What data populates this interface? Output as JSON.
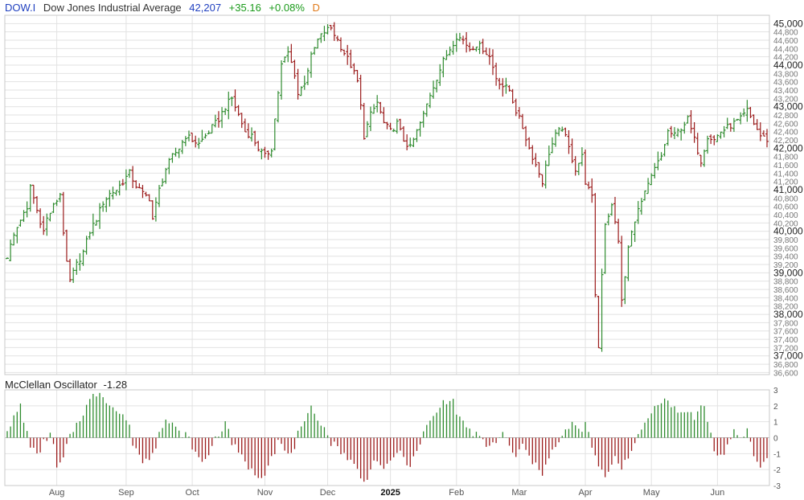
{
  "header": {
    "symbol": "DOW.I",
    "name": "Dow Jones Industrial Average",
    "last": "42,207",
    "change": "+35.16",
    "percent": "+0.08%",
    "frequency": "D"
  },
  "oscillator": {
    "name": "McClellan Oscillator",
    "value": "-1.28"
  },
  "colors": {
    "up": "#2e8b2e",
    "down": "#9b1b1b",
    "grid": "#e2e2e2",
    "frame": "#c8c8c8",
    "axis_text": "#555555"
  },
  "chart_data": [
    {
      "type": "ohlc",
      "title": "Dow Jones Industrial Average",
      "x_months": [
        {
          "label": "Aug",
          "index": 15
        },
        {
          "label": "Sep",
          "index": 36
        },
        {
          "label": "Oct",
          "index": 56
        },
        {
          "label": "Nov",
          "index": 78
        },
        {
          "label": "Dec",
          "index": 97
        },
        {
          "label": "2025",
          "index": 116
        },
        {
          "label": "Feb",
          "index": 136
        },
        {
          "label": "Mar",
          "index": 155
        },
        {
          "label": "Apr",
          "index": 175
        },
        {
          "label": "May",
          "index": 195
        },
        {
          "label": "Jun",
          "index": 215
        }
      ],
      "ylim": [
        36550,
        45200
      ],
      "major_ticks": [
        37000,
        38000,
        39000,
        40000,
        41000,
        42000,
        43000,
        44000,
        45000
      ],
      "minor_ticks": [
        36600,
        36800,
        37200,
        37400,
        37600,
        37800,
        38200,
        38400,
        38600,
        38800,
        39200,
        39400,
        39600,
        39800,
        40200,
        40400,
        40600,
        40800,
        41200,
        41400,
        41600,
        41800,
        42200,
        42400,
        42600,
        42800,
        43200,
        43400,
        43600,
        43800,
        44200,
        44400,
        44600,
        44800
      ],
      "tick_labels": {
        "36600": "36,600",
        "36800": "36,800",
        "37000": "37,000",
        "37200": "37,200",
        "37400": "37,400",
        "37600": "37,600",
        "37800": "37,800",
        "38000": "38,000",
        "38200": "38,200",
        "38400": "38,400",
        "38600": "38,600",
        "38800": "38,800",
        "39000": "39,000",
        "39200": "39,200",
        "39400": "39,400",
        "39600": "39,600",
        "39800": "39,800",
        "40000": "40,000",
        "40200": "40,200",
        "40400": "40,400",
        "40600": "40,600",
        "40800": "40,800",
        "41000": "41,000",
        "41200": "41,200",
        "41400": "41,400",
        "41600": "41,600",
        "41800": "41,800",
        "42000": "42,000",
        "42200": "42,200",
        "42400": "42,400",
        "42600": "42,600",
        "42800": "42,800",
        "43000": "43,000",
        "43200": "43,200",
        "43400": "43,400",
        "43600": "43,600",
        "43800": "43,800",
        "44000": "44,000",
        "44200": "44,200",
        "44400": "44,400",
        "44600": "44,600",
        "44800": "44,800",
        "45000": "45,000"
      },
      "close_path": [
        [
          0,
          39400
        ],
        [
          2,
          39900
        ],
        [
          4,
          40300
        ],
        [
          6,
          40500
        ],
        [
          7,
          41100
        ],
        [
          9,
          40500
        ],
        [
          11,
          40000
        ],
        [
          12,
          40300
        ],
        [
          14,
          40600
        ],
        [
          16,
          40900
        ],
        [
          17,
          40000
        ],
        [
          18,
          39200
        ],
        [
          19,
          38800
        ],
        [
          21,
          39200
        ],
        [
          23,
          39500
        ],
        [
          25,
          40000
        ],
        [
          27,
          40300
        ],
        [
          29,
          40700
        ],
        [
          31,
          40900
        ],
        [
          33,
          41000
        ],
        [
          35,
          41200
        ],
        [
          37,
          41400
        ],
        [
          39,
          41100
        ],
        [
          41,
          40900
        ],
        [
          43,
          40800
        ],
        [
          44,
          40300
        ],
        [
          46,
          41000
        ],
        [
          48,
          41500
        ],
        [
          50,
          41800
        ],
        [
          52,
          42000
        ],
        [
          54,
          42300
        ],
        [
          56,
          42200
        ],
        [
          58,
          42100
        ],
        [
          60,
          42300
        ],
        [
          62,
          42500
        ],
        [
          64,
          42700
        ],
        [
          66,
          43000
        ],
        [
          68,
          43200
        ],
        [
          70,
          42800
        ],
        [
          72,
          42400
        ],
        [
          74,
          42300
        ],
        [
          76,
          42000
        ],
        [
          78,
          41800
        ],
        [
          80,
          42000
        ],
        [
          81,
          42700
        ],
        [
          83,
          44000
        ],
        [
          85,
          44300
        ],
        [
          87,
          43800
        ],
        [
          88,
          43300
        ],
        [
          90,
          43600
        ],
        [
          92,
          44200
        ],
        [
          94,
          44600
        ],
        [
          96,
          44800
        ],
        [
          98,
          44900
        ],
        [
          100,
          44600
        ],
        [
          102,
          44300
        ],
        [
          104,
          44000
        ],
        [
          106,
          43600
        ],
        [
          107,
          43000
        ],
        [
          108,
          42300
        ],
        [
          110,
          42800
        ],
        [
          112,
          43100
        ],
        [
          114,
          42600
        ],
        [
          116,
          42400
        ],
        [
          118,
          42600
        ],
        [
          120,
          42200
        ],
        [
          122,
          42000
        ],
        [
          124,
          42400
        ],
        [
          126,
          42800
        ],
        [
          128,
          43300
        ],
        [
          130,
          43700
        ],
        [
          132,
          44100
        ],
        [
          134,
          44400
        ],
        [
          136,
          44700
        ],
        [
          138,
          44600
        ],
        [
          140,
          44400
        ],
        [
          142,
          44500
        ],
        [
          144,
          44400
        ],
        [
          146,
          44200
        ],
        [
          148,
          43700
        ],
        [
          150,
          43500
        ],
        [
          152,
          43400
        ],
        [
          154,
          42900
        ],
        [
          156,
          42500
        ],
        [
          158,
          42000
        ],
        [
          160,
          41600
        ],
        [
          162,
          41200
        ],
        [
          164,
          41900
        ],
        [
          166,
          42300
        ],
        [
          168,
          42500
        ],
        [
          170,
          42000
        ],
        [
          172,
          41500
        ],
        [
          174,
          41800
        ],
        [
          175,
          41200
        ],
        [
          177,
          40800
        ],
        [
          178,
          38500
        ],
        [
          179,
          37200
        ],
        [
          180,
          39000
        ],
        [
          181,
          40200
        ],
        [
          183,
          40600
        ],
        [
          185,
          39800
        ],
        [
          186,
          38300
        ],
        [
          187,
          38900
        ],
        [
          188,
          39600
        ],
        [
          190,
          40300
        ],
        [
          192,
          40700
        ],
        [
          194,
          41100
        ],
        [
          196,
          41500
        ],
        [
          198,
          41800
        ],
        [
          200,
          42400
        ],
        [
          202,
          42300
        ],
        [
          204,
          42500
        ],
        [
          206,
          42700
        ],
        [
          208,
          42200
        ],
        [
          210,
          41700
        ],
        [
          212,
          42300
        ],
        [
          214,
          42200
        ],
        [
          216,
          42400
        ],
        [
          218,
          42500
        ],
        [
          220,
          42600
        ],
        [
          222,
          42700
        ],
        [
          224,
          42900
        ],
        [
          226,
          42600
        ],
        [
          228,
          42300
        ],
        [
          230,
          42207
        ]
      ]
    },
    {
      "type": "bar",
      "title": "McClellan Oscillator",
      "ylim": [
        -3,
        3
      ],
      "ticks": [
        -3,
        -2,
        -1,
        0,
        1,
        2,
        3
      ],
      "tick_labels": [
        "-3",
        "-2",
        "-1",
        "0",
        "1",
        "2",
        "3"
      ],
      "value_path": [
        [
          0,
          0.6
        ],
        [
          2,
          1.2
        ],
        [
          4,
          2.0
        ],
        [
          5,
          1.0
        ],
        [
          7,
          -0.4
        ],
        [
          9,
          -1.2
        ],
        [
          11,
          -0.3
        ],
        [
          13,
          0.3
        ],
        [
          14,
          -0.6
        ],
        [
          15,
          -1.9
        ],
        [
          17,
          -1.4
        ],
        [
          18,
          -0.5
        ],
        [
          20,
          0.5
        ],
        [
          22,
          1.2
        ],
        [
          24,
          2.0
        ],
        [
          26,
          2.6
        ],
        [
          28,
          2.9
        ],
        [
          30,
          2.4
        ],
        [
          32,
          1.9
        ],
        [
          34,
          1.5
        ],
        [
          36,
          1.2
        ],
        [
          37,
          0.6
        ],
        [
          38,
          -0.3
        ],
        [
          40,
          -1.0
        ],
        [
          41,
          -1.6
        ],
        [
          43,
          -1.2
        ],
        [
          45,
          -0.5
        ],
        [
          46,
          0.6
        ],
        [
          48,
          1.1
        ],
        [
          50,
          0.8
        ],
        [
          52,
          0.3
        ],
        [
          54,
          0.2
        ],
        [
          56,
          -0.5
        ],
        [
          57,
          -1.0
        ],
        [
          59,
          -1.6
        ],
        [
          61,
          -1.0
        ],
        [
          62,
          -0.4
        ],
        [
          64,
          0.3
        ],
        [
          66,
          0.8
        ],
        [
          67,
          0.6
        ],
        [
          68,
          -0.3
        ],
        [
          70,
          -1.0
        ],
        [
          72,
          -1.5
        ],
        [
          74,
          -2.1
        ],
        [
          76,
          -2.4
        ],
        [
          78,
          -2.2
        ],
        [
          79,
          -1.5
        ],
        [
          81,
          -0.8
        ],
        [
          82,
          -0.2
        ],
        [
          84,
          -0.8
        ],
        [
          85,
          -1.2
        ],
        [
          87,
          -0.5
        ],
        [
          88,
          0.2
        ],
        [
          90,
          0.8
        ],
        [
          91,
          1.3
        ],
        [
          92,
          1.8
        ],
        [
          94,
          1.3
        ],
        [
          96,
          0.6
        ],
        [
          98,
          -0.3
        ],
        [
          100,
          -0.6
        ],
        [
          102,
          -1.0
        ],
        [
          104,
          -1.5
        ],
        [
          106,
          -2.0
        ],
        [
          108,
          -2.9
        ],
        [
          109,
          -2.4
        ],
        [
          110,
          -1.8
        ],
        [
          112,
          -1.3
        ],
        [
          114,
          -2.2
        ],
        [
          116,
          -1.5
        ],
        [
          118,
          -0.8
        ],
        [
          120,
          -1.3
        ],
        [
          122,
          -1.7
        ],
        [
          124,
          -1.0
        ],
        [
          125,
          -0.3
        ],
        [
          126,
          0.3
        ],
        [
          128,
          1.0
        ],
        [
          130,
          1.6
        ],
        [
          132,
          2.2
        ],
        [
          134,
          2.5
        ],
        [
          135,
          2.2
        ],
        [
          136,
          1.6
        ],
        [
          138,
          1.0
        ],
        [
          140,
          0.4
        ],
        [
          142,
          0.2
        ],
        [
          144,
          -0.3
        ],
        [
          146,
          -0.6
        ],
        [
          148,
          -0.2
        ],
        [
          150,
          0.3
        ],
        [
          152,
          -0.6
        ],
        [
          154,
          -1.2
        ],
        [
          156,
          -0.5
        ],
        [
          158,
          -1.2
        ],
        [
          160,
          -1.8
        ],
        [
          162,
          -2.2
        ],
        [
          163,
          -1.5
        ],
        [
          165,
          -0.8
        ],
        [
          167,
          -0.4
        ],
        [
          169,
          0.4
        ],
        [
          171,
          0.9
        ],
        [
          173,
          0.4
        ],
        [
          175,
          0.8
        ],
        [
          176,
          0.2
        ],
        [
          177,
          -0.6
        ],
        [
          179,
          -1.8
        ],
        [
          181,
          -2.6
        ],
        [
          182,
          -2.0
        ],
        [
          184,
          -1.2
        ],
        [
          186,
          -1.8
        ],
        [
          188,
          -1.1
        ],
        [
          190,
          -0.5
        ],
        [
          192,
          0.5
        ],
        [
          194,
          1.3
        ],
        [
          196,
          1.9
        ],
        [
          198,
          2.4
        ],
        [
          199,
          2.6
        ],
        [
          200,
          2.2
        ],
        [
          202,
          1.8
        ],
        [
          204,
          1.5
        ],
        [
          206,
          1.8
        ],
        [
          208,
          1.2
        ],
        [
          210,
          1.9
        ],
        [
          211,
          2.1
        ],
        [
          212,
          1.0
        ],
        [
          213,
          0.2
        ],
        [
          214,
          -0.8
        ],
        [
          216,
          -1.2
        ],
        [
          218,
          -0.5
        ],
        [
          220,
          0.3
        ],
        [
          222,
          -0.2
        ],
        [
          224,
          0.6
        ],
        [
          225,
          -0.4
        ],
        [
          227,
          -1.6
        ],
        [
          228,
          -1.8
        ],
        [
          230,
          -1.28
        ]
      ]
    }
  ]
}
